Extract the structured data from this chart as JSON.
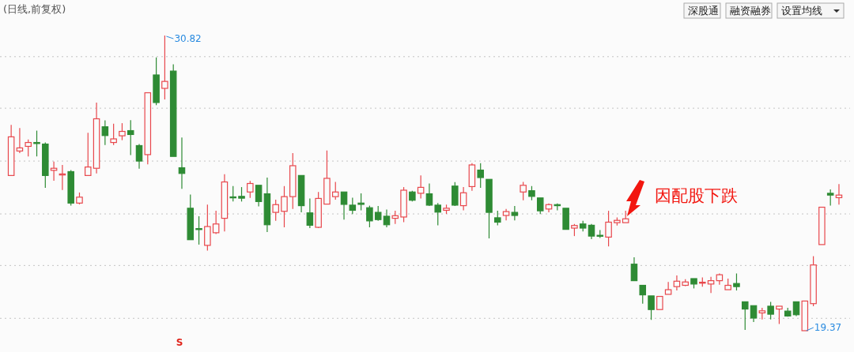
{
  "chart_data": {
    "type": "candlestick",
    "title": "(日线,前复权)",
    "categories": [
      null,
      null,
      null,
      null,
      null,
      null,
      null,
      null,
      null,
      null,
      null,
      null,
      null,
      null,
      null,
      null,
      null,
      null,
      null,
      null,
      null,
      null,
      null,
      null,
      null,
      null,
      null,
      null,
      null,
      null,
      null,
      null,
      null,
      null,
      null,
      null,
      null,
      null,
      null,
      null,
      null,
      null,
      null,
      null,
      null,
      null,
      null,
      null,
      null,
      null,
      null,
      null,
      null,
      null,
      null,
      null,
      null,
      null,
      null,
      null,
      null,
      null,
      null,
      null,
      null,
      null,
      null,
      null,
      null,
      null,
      null,
      null,
      null,
      null,
      null,
      null,
      null,
      null,
      null,
      null,
      null,
      null,
      null,
      null,
      null,
      null,
      null,
      null,
      null,
      null,
      null,
      null,
      null,
      null,
      null,
      null,
      null,
      null
    ],
    "ohlc": [
      [
        25.39,
        27.35,
        25.39,
        26.89
      ],
      [
        26.34,
        27.23,
        26.26,
        26.46
      ],
      [
        26.52,
        26.79,
        26.13,
        26.67
      ],
      [
        26.67,
        27.13,
        26.13,
        26.63
      ],
      [
        26.61,
        26.67,
        24.91,
        25.39
      ],
      [
        25.59,
        25.93,
        25.19,
        25.67
      ],
      [
        25.41,
        25.8,
        24.83,
        25.45
      ],
      [
        25.54,
        25.6,
        24.22,
        24.32
      ],
      [
        24.32,
        24.73,
        24.27,
        24.55
      ],
      [
        25.39,
        27.05,
        25.39,
        25.72
      ],
      [
        25.67,
        28.22,
        25.47,
        27.59
      ],
      [
        27.28,
        27.53,
        26.57,
        26.94
      ],
      [
        26.67,
        27.4,
        26.57,
        26.81
      ],
      [
        26.93,
        27.42,
        26.76,
        27.1
      ],
      [
        27.13,
        27.54,
        26.18,
        26.98
      ],
      [
        26.55,
        26.61,
        25.65,
        25.95
      ],
      [
        26.2,
        28.6,
        25.82,
        28.6
      ],
      [
        29.29,
        29.97,
        28.12,
        28.22
      ],
      [
        28.77,
        30.82,
        28.34,
        29.04
      ],
      [
        29.44,
        29.7,
        26.13,
        26.13
      ],
      [
        25.69,
        26.86,
        24.87,
        25.47
      ],
      [
        24.12,
        24.65,
        22.9,
        22.9
      ],
      [
        23.33,
        23.81,
        22.71,
        23.3
      ],
      [
        22.68,
        24.26,
        22.48,
        23.41
      ],
      [
        23.17,
        24.02,
        23.12,
        23.51
      ],
      [
        23.73,
        25.44,
        23.22,
        25.14
      ],
      [
        24.56,
        24.98,
        24.38,
        24.53
      ],
      [
        24.58,
        24.94,
        24.38,
        24.51
      ],
      [
        24.75,
        25.18,
        24.52,
        25.08
      ],
      [
        25.01,
        25.01,
        24.19,
        24.38
      ],
      [
        24.68,
        25.31,
        23.2,
        23.48
      ],
      [
        23.96,
        24.45,
        23.63,
        24.26
      ],
      [
        24.0,
        24.98,
        23.38,
        24.57
      ],
      [
        24.57,
        26.26,
        24.09,
        25.77
      ],
      [
        25.39,
        25.39,
        23.96,
        24.22
      ],
      [
        23.94,
        24.5,
        23.35,
        23.46
      ],
      [
        23.38,
        24.75,
        23.35,
        24.5
      ],
      [
        24.28,
        26.36,
        24.28,
        25.28
      ],
      [
        24.57,
        25.14,
        24.45,
        24.75
      ],
      [
        24.75,
        24.75,
        23.68,
        24.27
      ],
      [
        24.24,
        24.53,
        23.89,
        24.04
      ],
      [
        24.32,
        24.7,
        24.04,
        24.27
      ],
      [
        24.14,
        24.22,
        23.38,
        23.63
      ],
      [
        23.96,
        24.21,
        23.63,
        23.68
      ],
      [
        23.81,
        24.07,
        23.38,
        23.48
      ],
      [
        23.73,
        24.02,
        23.51,
        23.83
      ],
      [
        23.78,
        24.94,
        23.58,
        24.82
      ],
      [
        24.75,
        24.8,
        24.38,
        24.43
      ],
      [
        24.7,
        25.39,
        24.5,
        24.93
      ],
      [
        24.68,
        25.08,
        24.21,
        24.24
      ],
      [
        24.24,
        24.32,
        23.46,
        23.97
      ],
      [
        24.04,
        24.26,
        23.9,
        24.12
      ],
      [
        24.98,
        25.13,
        24.21,
        24.24
      ],
      [
        24.22,
        24.94,
        24.04,
        24.72
      ],
      [
        24.96,
        25.87,
        24.8,
        25.8
      ],
      [
        25.6,
        25.87,
        24.91,
        25.31
      ],
      [
        25.24,
        25.24,
        22.95,
        23.96
      ],
      [
        23.75,
        24.02,
        23.46,
        23.58
      ],
      [
        23.84,
        24.09,
        23.65,
        23.99
      ],
      [
        23.96,
        24.21,
        23.65,
        23.84
      ],
      [
        24.75,
        25.14,
        24.43,
        25.01
      ],
      [
        24.8,
        24.98,
        24.43,
        24.58
      ],
      [
        24.52,
        24.52,
        23.89,
        24.02
      ],
      [
        24.09,
        24.31,
        23.96,
        24.26
      ],
      [
        24.26,
        24.31,
        24.04,
        24.22
      ],
      [
        24.12,
        24.12,
        23.3,
        23.3
      ],
      [
        23.35,
        23.51,
        23.04,
        23.45
      ],
      [
        23.51,
        23.63,
        23.22,
        23.35
      ],
      [
        23.46,
        23.51,
        22.92,
        23.04
      ],
      [
        23.07,
        23.27,
        22.97,
        23.04
      ],
      [
        23.0,
        24.02,
        22.64,
        23.58
      ],
      [
        23.56,
        23.76,
        23.45,
        23.65
      ],
      [
        23.56,
        24.02,
        23.56,
        23.71
      ],
      [
        21.95,
        22.22,
        21.31,
        21.31
      ],
      [
        21.13,
        21.13,
        20.42,
        20.76
      ],
      [
        20.72,
        20.72,
        19.79,
        20.19
      ],
      [
        20.19,
        20.7,
        20.19,
        20.7
      ],
      [
        20.78,
        21.26,
        20.78,
        20.96
      ],
      [
        21.08,
        21.51,
        20.93,
        21.29
      ],
      [
        21.13,
        21.37,
        21.1,
        21.26
      ],
      [
        21.39,
        21.39,
        21.01,
        21.18
      ],
      [
        21.23,
        21.44,
        21.08,
        21.25
      ],
      [
        21.18,
        21.46,
        20.83,
        21.31
      ],
      [
        21.31,
        21.59,
        21.15,
        21.54
      ],
      [
        20.96,
        21.39,
        20.96,
        21.13
      ],
      [
        21.2,
        21.59,
        20.93,
        21.08
      ],
      [
        20.49,
        20.49,
        19.4,
        20.21
      ],
      [
        20.34,
        20.34,
        19.71,
        19.86
      ],
      [
        20.06,
        20.26,
        19.81,
        20.14
      ],
      [
        20.32,
        20.49,
        19.81,
        20.01
      ],
      [
        20.21,
        20.32,
        19.63,
        20.32
      ],
      [
        20.13,
        20.26,
        19.91,
        19.94
      ],
      [
        20.49,
        20.49,
        19.94,
        19.99
      ],
      [
        19.37,
        20.52,
        19.37,
        20.52
      ],
      [
        20.42,
        22.26,
        20.32,
        21.92
      ],
      [
        22.71,
        24.16,
        22.71,
        24.16
      ],
      [
        24.7,
        24.85,
        24.22,
        24.63
      ],
      [
        24.53,
        25.06,
        24.26,
        24.63
      ]
    ],
    "yticks": [
      {
        "value": 30,
        "label": null
      },
      {
        "value": 28,
        "label": null
      },
      {
        "value": 25.95,
        "label": null
      },
      {
        "value": 23.9,
        "label": null
      },
      {
        "value": 21.9,
        "label": null
      },
      {
        "value": 19.85,
        "label": null
      }
    ],
    "grid": "y",
    "annotations": [
      "30.82",
      "19.37",
      "因配股下跌",
      "S",
      "深股通",
      "融资融券",
      "设置均线"
    ]
  }
}
